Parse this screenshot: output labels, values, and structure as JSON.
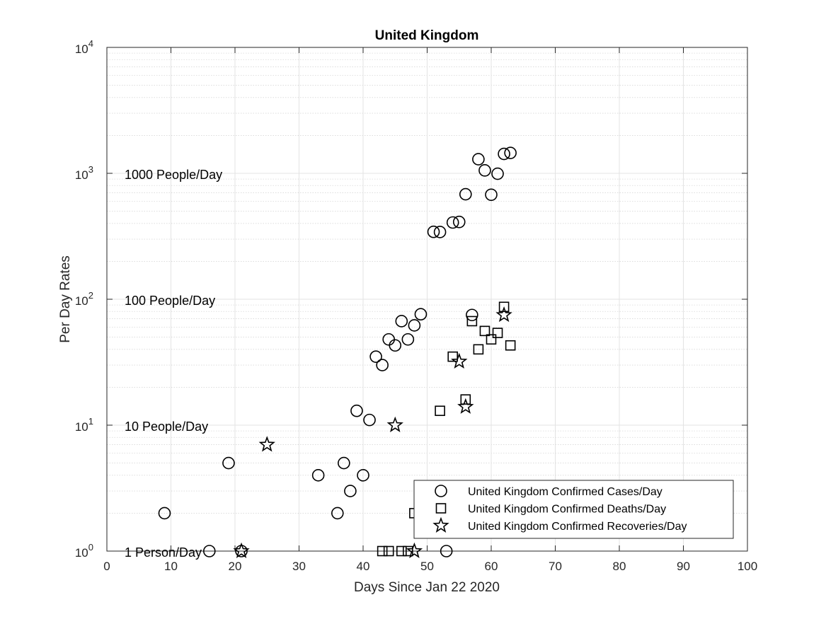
{
  "chart_data": {
    "type": "scatter",
    "title": "United Kingdom",
    "xlabel": "Days Since Jan 22 2020",
    "ylabel": "Per Day Rates",
    "xlim": [
      0,
      100
    ],
    "ylim": [
      1,
      10000
    ],
    "yscale": "log",
    "grid": true,
    "x_ticks": [
      0,
      10,
      20,
      30,
      40,
      50,
      60,
      70,
      80,
      90,
      100
    ],
    "y_ticks": [
      {
        "value": 1,
        "base": "10",
        "exp": "0"
      },
      {
        "value": 10,
        "base": "10",
        "exp": "1"
      },
      {
        "value": 100,
        "base": "10",
        "exp": "2"
      },
      {
        "value": 1000,
        "base": "10",
        "exp": "3"
      },
      {
        "value": 10000,
        "base": "10",
        "exp": "4"
      }
    ],
    "annotations": [
      {
        "text": "1 Person/Day",
        "y": 1
      },
      {
        "text": "10 People/Day",
        "y": 10
      },
      {
        "text": "100 People/Day",
        "y": 100
      },
      {
        "text": "1000 People/Day",
        "y": 1000
      }
    ],
    "legend_position": "bottom-right",
    "series": [
      {
        "name": "United Kingdom Confirmed Cases/Day",
        "marker": "circle",
        "points": [
          [
            9,
            2
          ],
          [
            16,
            1
          ],
          [
            19,
            5
          ],
          [
            21,
            1
          ],
          [
            33,
            4
          ],
          [
            36,
            2
          ],
          [
            37,
            5
          ],
          [
            38,
            3
          ],
          [
            39,
            13
          ],
          [
            40,
            4
          ],
          [
            41,
            11
          ],
          [
            42,
            35
          ],
          [
            43,
            30
          ],
          [
            44,
            48
          ],
          [
            45,
            43
          ],
          [
            46,
            67
          ],
          [
            47,
            48
          ],
          [
            48,
            62
          ],
          [
            49,
            76
          ],
          [
            51,
            343
          ],
          [
            52,
            342
          ],
          [
            53,
            1
          ],
          [
            54,
            407
          ],
          [
            55,
            411
          ],
          [
            56,
            682
          ],
          [
            57,
            75
          ],
          [
            58,
            1294
          ],
          [
            59,
            1055
          ],
          [
            60,
            676
          ],
          [
            61,
            993
          ],
          [
            62,
            1427
          ],
          [
            63,
            1452
          ]
        ]
      },
      {
        "name": "United Kingdom Confirmed Deaths/Day",
        "marker": "square",
        "points": [
          [
            43,
            1
          ],
          [
            44,
            1
          ],
          [
            46,
            1
          ],
          [
            47,
            1
          ],
          [
            48,
            2
          ],
          [
            52,
            13
          ],
          [
            54,
            35
          ],
          [
            56,
            16
          ],
          [
            57,
            67
          ],
          [
            58,
            40
          ],
          [
            59,
            56
          ],
          [
            60,
            48
          ],
          [
            61,
            54
          ],
          [
            62,
            87
          ],
          [
            63,
            43
          ]
        ]
      },
      {
        "name": "United Kingdom Confirmed Recoveries/Day",
        "marker": "star",
        "points": [
          [
            21,
            1
          ],
          [
            25,
            7
          ],
          [
            45,
            10
          ],
          [
            48,
            1
          ],
          [
            55,
            32
          ],
          [
            56,
            14
          ],
          [
            62,
            75
          ]
        ]
      }
    ]
  }
}
